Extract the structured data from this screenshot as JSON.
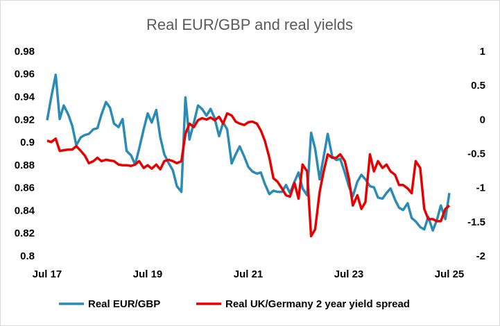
{
  "chart_data": {
    "type": "line",
    "title": "Real EUR/GBP and real yields",
    "x": [
      2017.5,
      2017.58,
      2017.67,
      2017.75,
      2017.83,
      2017.92,
      2018.0,
      2018.08,
      2018.17,
      2018.25,
      2018.33,
      2018.42,
      2018.5,
      2018.58,
      2018.67,
      2018.75,
      2018.83,
      2018.92,
      2019.0,
      2019.08,
      2019.17,
      2019.25,
      2019.33,
      2019.42,
      2019.5,
      2019.58,
      2019.67,
      2019.75,
      2019.83,
      2019.92,
      2020.0,
      2020.08,
      2020.17,
      2020.25,
      2020.33,
      2020.42,
      2020.5,
      2020.58,
      2020.67,
      2020.75,
      2020.83,
      2020.92,
      2021.0,
      2021.08,
      2021.17,
      2021.25,
      2021.33,
      2021.42,
      2021.5,
      2021.58,
      2021.67,
      2021.75,
      2021.83,
      2021.92,
      2022.0,
      2022.08,
      2022.17,
      2022.25,
      2022.33,
      2022.42,
      2022.5,
      2022.58,
      2022.67,
      2022.75,
      2022.83,
      2022.92,
      2023.0,
      2023.08,
      2023.17,
      2023.25,
      2023.33,
      2023.42,
      2023.5,
      2023.58,
      2023.67,
      2023.75,
      2023.83,
      2023.92,
      2024.0,
      2024.08,
      2024.17,
      2024.25,
      2024.33,
      2024.42,
      2024.5,
      2024.58,
      2024.67,
      2024.75,
      2024.83,
      2024.92,
      2025.0,
      2025.08,
      2025.17,
      2025.25,
      2025.33,
      2025.42,
      2025.5
    ],
    "xlim": [
      2017.5,
      2025.6
    ],
    "xticks": [
      {
        "value": 2017.5,
        "label": "Jul 17"
      },
      {
        "value": 2019.5,
        "label": "Jul 19"
      },
      {
        "value": 2021.5,
        "label": "Jul 21"
      },
      {
        "value": 2023.5,
        "label": "Jul 23"
      },
      {
        "value": 2025.5,
        "label": "Jul 25"
      }
    ],
    "ylim": [
      0.8,
      0.98
    ],
    "yticks": [
      0.8,
      0.82,
      0.84,
      0.86,
      0.88,
      0.9,
      0.92,
      0.94,
      0.96,
      0.98
    ],
    "y2lim": [
      -2,
      1
    ],
    "y2ticks": [
      -2,
      -1.5,
      -1,
      -0.5,
      0,
      0.5,
      1
    ],
    "grid": false,
    "series": [
      {
        "name": "Real EUR/GBP",
        "color": "#2a8cb6",
        "values": [
          0.92,
          0.94,
          0.96,
          0.921,
          0.933,
          0.925,
          0.915,
          0.898,
          0.905,
          0.907,
          0.908,
          0.912,
          0.913,
          0.925,
          0.936,
          0.931,
          0.917,
          0.914,
          0.921,
          0.893,
          0.889,
          0.881,
          0.895,
          0.912,
          0.926,
          0.918,
          0.929,
          0.905,
          0.89,
          0.882,
          0.876,
          0.862,
          0.857,
          0.94,
          0.903,
          0.918,
          0.933,
          0.93,
          0.924,
          0.93,
          0.922,
          0.906,
          0.918,
          0.912,
          0.882,
          0.89,
          0.897,
          0.888,
          0.879,
          0.875,
          0.873,
          0.874,
          0.864,
          0.855,
          0.858,
          0.857,
          0.857,
          0.863,
          0.856,
          0.866,
          0.874,
          0.86,
          0.854,
          0.909,
          0.895,
          0.868,
          0.888,
          0.908,
          0.888,
          0.885,
          0.886,
          0.874,
          0.862,
          0.853,
          0.866,
          0.872,
          0.868,
          0.862,
          0.861,
          0.852,
          0.851,
          0.856,
          0.86,
          0.85,
          0.843,
          0.841,
          0.847,
          0.834,
          0.831,
          0.826,
          0.824,
          0.835,
          0.823,
          0.832,
          0.845,
          0.833,
          0.856
        ]
      },
      {
        "name": "Real UK/Germany 2 year yield spread",
        "color": "#e60000",
        "axis": "y2",
        "values": [
          -0.3,
          -0.32,
          -0.27,
          -0.45,
          -0.44,
          -0.43,
          -0.43,
          -0.38,
          -0.45,
          -0.52,
          -0.63,
          -0.6,
          -0.55,
          -0.6,
          -0.58,
          -0.59,
          -0.6,
          -0.65,
          -0.66,
          -0.66,
          -0.67,
          -0.65,
          -0.6,
          -0.7,
          -0.66,
          -0.71,
          -0.65,
          -0.72,
          -0.6,
          -0.58,
          -0.6,
          -0.63,
          -0.6,
          -0.2,
          -0.05,
          -0.1,
          0.0,
          0.03,
          0.01,
          0.04,
          0.0,
          0.05,
          -0.05,
          0.1,
          0.07,
          -0.02,
          -0.05,
          -0.07,
          -0.03,
          -0.02,
          -0.05,
          -0.15,
          -0.3,
          -0.55,
          -0.85,
          -0.9,
          -1.0,
          -1.1,
          -1.12,
          -0.92,
          -1.15,
          -0.65,
          -0.75,
          -1.7,
          -1.6,
          -1.05,
          -0.75,
          -0.5,
          -0.55,
          -0.55,
          -0.5,
          -0.6,
          -0.85,
          -1.25,
          -1.1,
          -1.3,
          -1.2,
          -0.5,
          -0.75,
          -0.6,
          -0.7,
          -0.65,
          -0.75,
          -0.8,
          -0.95,
          -0.95,
          -1.0,
          -1.07,
          -0.6,
          -0.7,
          -1.3,
          -1.45,
          -1.45,
          -1.48,
          -1.48,
          -1.3,
          -1.25
        ]
      }
    ]
  }
}
